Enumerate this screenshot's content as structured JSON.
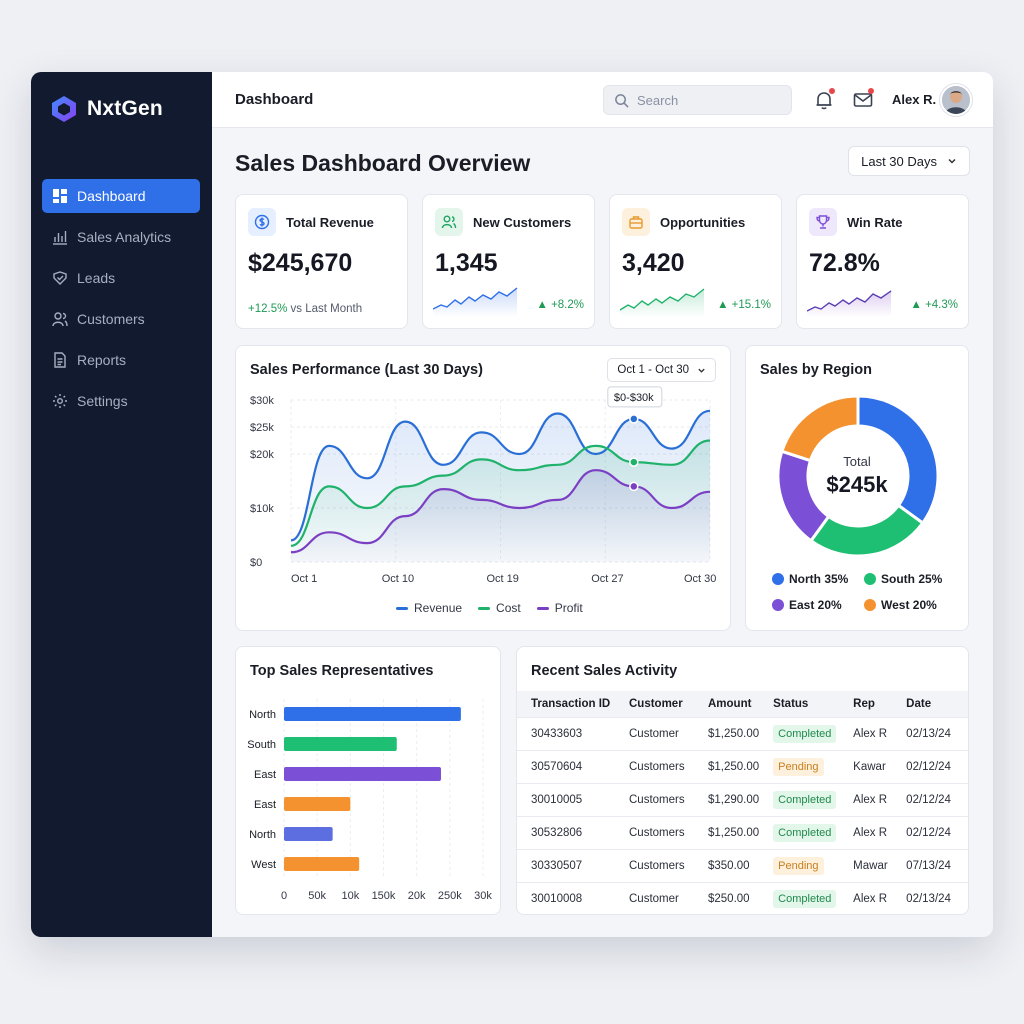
{
  "brand": {
    "name": "NxtGen",
    "logo_icon": "hexagon-logo-icon"
  },
  "sidebar": {
    "items": [
      {
        "label": "Dashboard",
        "icon": "grid-icon",
        "active": true
      },
      {
        "label": "Sales Analytics",
        "icon": "bar-chart-icon",
        "active": false
      },
      {
        "label": "Leads",
        "icon": "shield-icon",
        "active": false
      },
      {
        "label": "Customers",
        "icon": "users-icon",
        "active": false
      },
      {
        "label": "Reports",
        "icon": "document-icon",
        "active": false
      },
      {
        "label": "Settings",
        "icon": "gear-icon",
        "active": false
      }
    ]
  },
  "topbar": {
    "title": "Dashboard",
    "search_placeholder": "Search",
    "user_name": "Alex R."
  },
  "page": {
    "title": "Sales Dashboard Overview",
    "range_label": "Last 30 Days"
  },
  "kpis": [
    {
      "label": "Total Revenue",
      "value": "$245,670",
      "foot_delta": "+12.5%",
      "foot_text": "vs Last Month",
      "icon": "dollar-icon",
      "accent": "#2f6fe8"
    },
    {
      "label": "New Customers",
      "value": "1,345",
      "delta": "+8.2%",
      "icon": "users-icon",
      "accent": "#1fa463"
    },
    {
      "label": "Opportunities",
      "value": "3,420",
      "delta": "+15.1%",
      "icon": "briefcase-icon",
      "accent": "#e89a2f"
    },
    {
      "label": "Win Rate",
      "value": "72.8%",
      "delta": "+4.3%",
      "icon": "trophy-icon",
      "accent": "#7b4fd6"
    }
  ],
  "performance": {
    "title": "Sales Performance (Last 30 Days)",
    "range_label": "Oct 1 - Oct 30",
    "tooltip": "$0-$30k",
    "legend": [
      "Revenue",
      "Cost",
      "Profit"
    ]
  },
  "region": {
    "title": "Sales by Region",
    "center_label": "Total",
    "center_value": "$245k",
    "legend": [
      {
        "label": "North 35%",
        "color": "#2f6fe8"
      },
      {
        "label": "South 25%",
        "color": "#1fbf73"
      },
      {
        "label": "East 20%",
        "color": "#7b4fd6"
      },
      {
        "label": "West 20%",
        "color": "#f4922f"
      }
    ]
  },
  "reps": {
    "title": "Top Sales Representatives"
  },
  "activity": {
    "title": "Recent Sales Activity",
    "columns": [
      "Transaction ID",
      "Customer",
      "Amount",
      "Status",
      "Rep",
      "Date"
    ],
    "rows": [
      {
        "id": "30433603",
        "customer": "Customer",
        "amount": "$1,250.00",
        "status": "Completed",
        "rep": "Alex R",
        "date": "02/13/24"
      },
      {
        "id": "30570604",
        "customer": "Customers",
        "amount": "$1,250.00",
        "status": "Pending",
        "rep": "Kawar",
        "date": "02/12/24"
      },
      {
        "id": "30010005",
        "customer": "Customers",
        "amount": "$1,290.00",
        "status": "Completed",
        "rep": "Alex R",
        "date": "02/12/24"
      },
      {
        "id": "30532806",
        "customer": "Customers",
        "amount": "$1,250.00",
        "status": "Completed",
        "rep": "Alex R",
        "date": "02/12/24"
      },
      {
        "id": "30330507",
        "customer": "Customers",
        "amount": "$350.00",
        "status": "Pending",
        "rep": "Mawar",
        "date": "07/13/24"
      },
      {
        "id": "30010008",
        "customer": "Customer",
        "amount": "$250.00",
        "status": "Completed",
        "rep": "Alex R",
        "date": "02/13/24"
      }
    ]
  },
  "chart_data": [
    {
      "type": "line",
      "title": "Sales Performance (Last 30 Days)",
      "x_ticks": [
        "Oct 1",
        "Oct 10",
        "Oct 19",
        "Oct 27",
        "Oct 30"
      ],
      "y_ticks": [
        "$0",
        "$10k",
        "$20k",
        "$25k",
        "$30k"
      ],
      "ylim": [
        0,
        30000
      ],
      "grid": true,
      "legend_position": "bottom",
      "series": [
        {
          "name": "Revenue",
          "color": "#2a6fd6",
          "values": [
            4000,
            21500,
            15500,
            26000,
            18000,
            24000,
            20000,
            27500,
            20000,
            26500,
            21000,
            28000
          ]
        },
        {
          "name": "Cost",
          "color": "#1fb26a",
          "values": [
            3000,
            14000,
            10000,
            14000,
            16000,
            19000,
            17000,
            18000,
            21500,
            18500,
            18000,
            22500
          ]
        },
        {
          "name": "Profit",
          "color": "#7b3fc4",
          "values": [
            1800,
            5500,
            3500,
            8500,
            13500,
            11500,
            10000,
            11500,
            17000,
            14000,
            10000,
            13000
          ]
        }
      ]
    },
    {
      "type": "pie",
      "title": "Sales by Region",
      "categories": [
        "North",
        "South",
        "East",
        "West"
      ],
      "values": [
        35,
        25,
        20,
        20
      ],
      "colors": [
        "#2f6fe8",
        "#1fbf73",
        "#7b4fd6",
        "#f4922f"
      ],
      "legend_position": "bottom"
    },
    {
      "type": "bar",
      "orientation": "horizontal",
      "title": "Top Sales Representatives",
      "categories": [
        "North",
        "South",
        "East",
        "East",
        "North",
        "West"
      ],
      "values": [
        8.0,
        5.1,
        7.1,
        3.0,
        2.2,
        3.4
      ],
      "colors": [
        "#2f6fe8",
        "#1fbf73",
        "#7b4fd6",
        "#f4922f",
        "#5d6ee0",
        "#f4922f"
      ],
      "x_ticks": [
        "0",
        "50k",
        "10k",
        "150k",
        "20k",
        "250k",
        "30k"
      ],
      "xlim": [
        0,
        9
      ],
      "grid": true
    }
  ]
}
